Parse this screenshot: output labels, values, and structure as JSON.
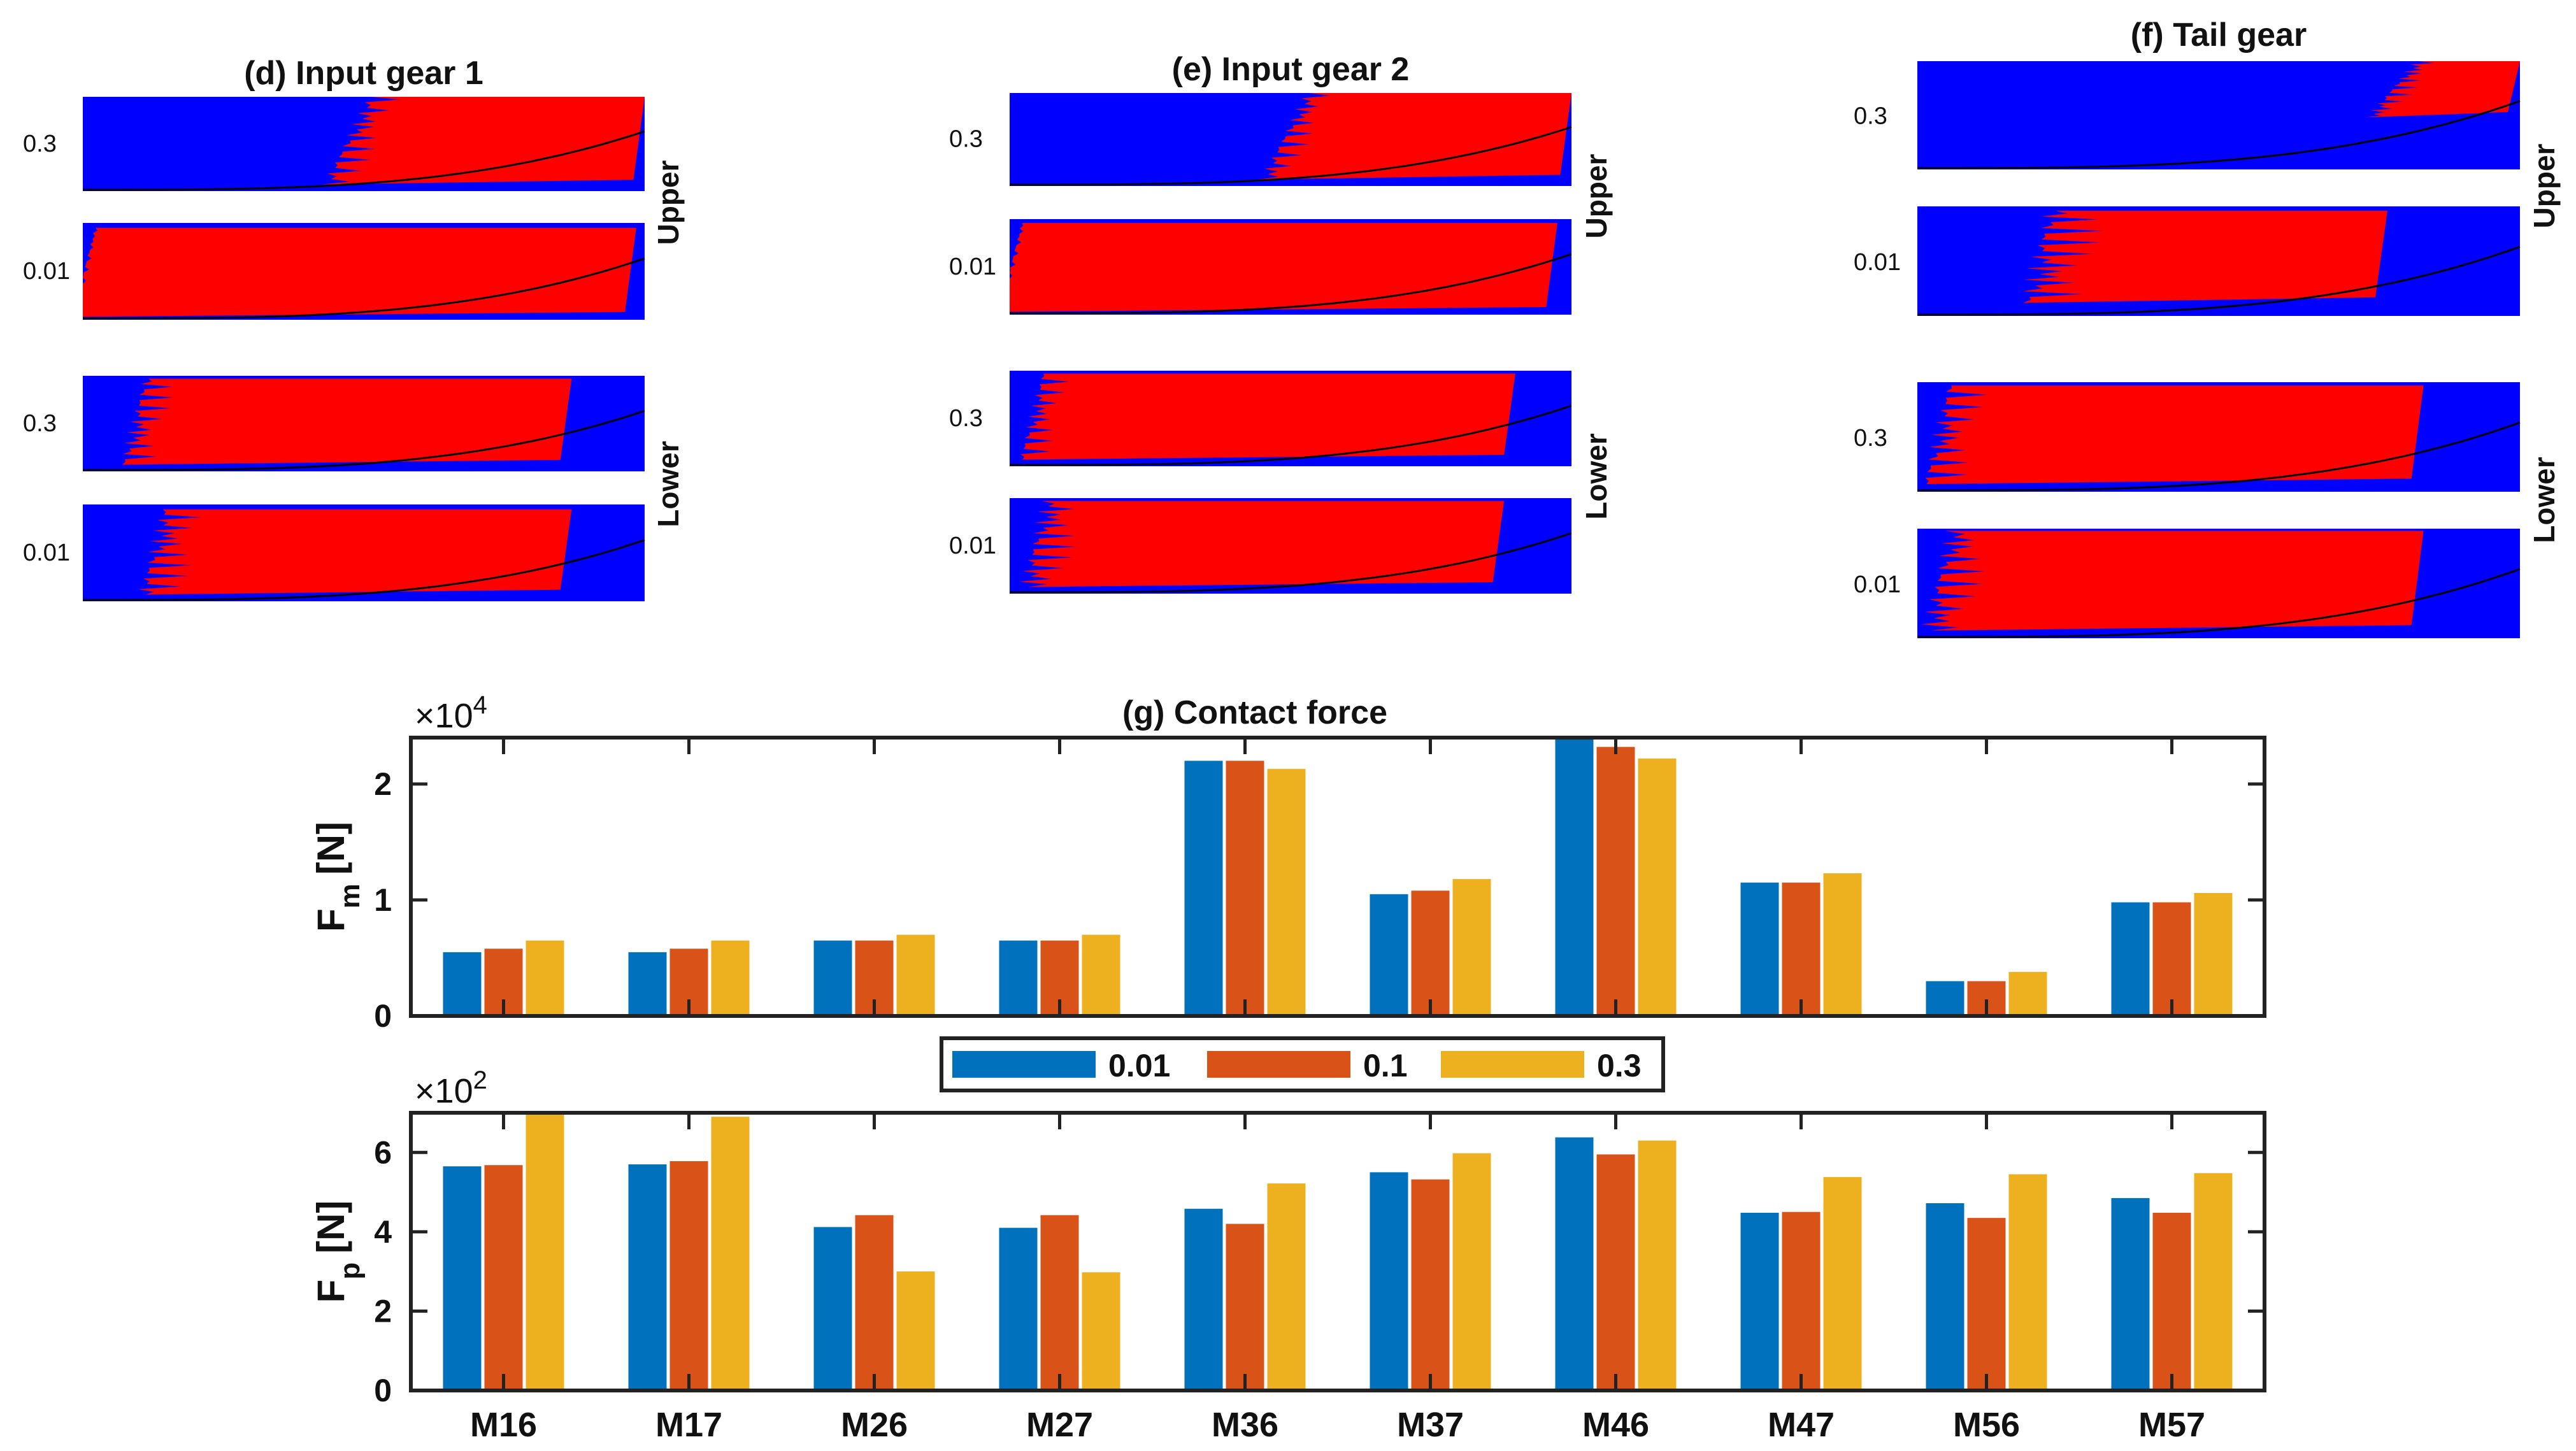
{
  "maps": {
    "panels": [
      {
        "title": "(d) Input gear 1",
        "rows": [
          "0.3",
          "0.01",
          "0.3",
          "0.01"
        ],
        "sides": [
          "Upper",
          "Lower"
        ]
      },
      {
        "title": "(e) Input gear 2",
        "rows": [
          "0.3",
          "0.01",
          "0.3",
          "0.01"
        ],
        "sides": [
          "Upper",
          "Lower"
        ]
      },
      {
        "title": "(f) Tail gear",
        "rows": [
          "0.3",
          "0.01",
          "0.3",
          "0.01"
        ],
        "sides": [
          "Upper",
          "Lower"
        ]
      }
    ],
    "colors": {
      "stick": "#0000ff",
      "slip": "#ff0000"
    }
  },
  "chart_data": [
    {
      "type": "bar",
      "title": "(g) Contact force",
      "ylabel": "F",
      "ylabel_sub": "m",
      "yunit": "[N]",
      "multiplier_base": "×10",
      "multiplier_exp": "4",
      "ylim": [
        0,
        2.4
      ],
      "yticks": [
        "0",
        "1",
        "2"
      ],
      "categories": [
        "M16",
        "M17",
        "M26",
        "M27",
        "M36",
        "M37",
        "M46",
        "M47",
        "M56",
        "M57"
      ],
      "series": [
        {
          "name": "0.01",
          "color": "#0072bd",
          "values": [
            0.55,
            0.55,
            0.65,
            0.65,
            2.2,
            1.05,
            2.4,
            1.15,
            0.3,
            0.98
          ]
        },
        {
          "name": "0.1",
          "color": "#d95319",
          "values": [
            0.58,
            0.58,
            0.65,
            0.65,
            2.2,
            1.08,
            2.32,
            1.15,
            0.3,
            0.98
          ]
        },
        {
          "name": "0.3",
          "color": "#edb120",
          "values": [
            0.65,
            0.65,
            0.7,
            0.7,
            2.13,
            1.18,
            2.22,
            1.23,
            0.38,
            1.06
          ]
        }
      ]
    },
    {
      "type": "bar",
      "title": "",
      "ylabel": "F",
      "ylabel_sub": "p",
      "yunit": "[N]",
      "multiplier_base": "×10",
      "multiplier_exp": "2",
      "ylim": [
        0,
        7
      ],
      "yticks": [
        "0",
        "2",
        "4",
        "6"
      ],
      "categories": [
        "M16",
        "M17",
        "M26",
        "M27",
        "M36",
        "M37",
        "M46",
        "M47",
        "M56",
        "M57"
      ],
      "series": [
        {
          "name": "0.01",
          "color": "#0072bd",
          "values": [
            5.65,
            5.7,
            4.12,
            4.1,
            4.58,
            5.5,
            6.38,
            4.48,
            4.72,
            4.85
          ]
        },
        {
          "name": "0.1",
          "color": "#d95319",
          "values": [
            5.68,
            5.78,
            4.42,
            4.42,
            4.2,
            5.32,
            5.95,
            4.5,
            4.35,
            4.48
          ]
        },
        {
          "name": "0.3",
          "color": "#edb120",
          "values": [
            7.0,
            6.9,
            3.0,
            2.98,
            5.22,
            5.98,
            6.3,
            5.38,
            5.45,
            5.48
          ]
        }
      ]
    }
  ],
  "legend": {
    "entries": [
      "0.01",
      "0.1",
      "0.3"
    ]
  }
}
